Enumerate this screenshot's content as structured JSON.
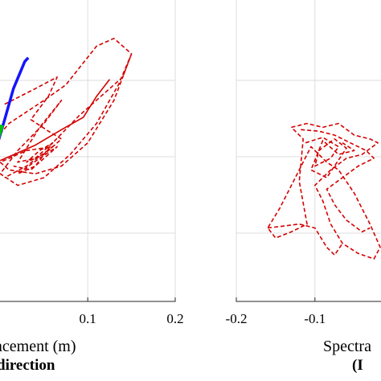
{
  "chart_data": [
    {
      "type": "line",
      "xlabel": "acement (m)",
      "subtitle": "direction",
      "x_ticks": [
        "0.1",
        "0.2"
      ],
      "x_tick_values": [
        0.1,
        0.2
      ],
      "xlim": [
        -0.0095,
        0.2
      ],
      "ylim": [
        0,
        4
      ],
      "grid": true,
      "series": [
        {
          "color": "#d40000",
          "style": "dashed",
          "points": [
            [
              -0.005,
              2.1
            ],
            [
              0.01,
              2.3
            ],
            [
              0.05,
              2.6
            ],
            [
              0.075,
              2.8
            ],
            [
              0.11,
              3.3
            ],
            [
              0.13,
              3.4
            ],
            [
              0.15,
              3.2
            ],
            [
              0.135,
              2.8
            ],
            [
              0.11,
              2.3
            ],
            [
              0.08,
              1.9
            ],
            [
              0.05,
              1.6
            ],
            [
              0.02,
              1.5
            ],
            [
              0.0,
              1.65
            ],
            [
              0.02,
              1.95
            ],
            [
              0.05,
              2.3
            ],
            [
              0.07,
              2.6
            ],
            [
              0.045,
              2.25
            ],
            [
              0.02,
              1.8
            ],
            [
              0.04,
              1.85
            ],
            [
              0.06,
              2.05
            ],
            [
              0.09,
              2.4
            ],
            [
              0.12,
              2.7
            ],
            [
              0.14,
              2.9
            ],
            [
              0.15,
              3.2
            ],
            [
              0.13,
              2.6
            ],
            [
              0.1,
              2.05
            ],
            [
              0.07,
              1.75
            ],
            [
              0.04,
              1.65
            ],
            [
              0.01,
              1.7
            ],
            [
              0.0,
              1.8
            ],
            [
              0.03,
              1.95
            ],
            [
              0.06,
              2.0
            ],
            [
              0.03,
              1.75
            ],
            [
              0.005,
              1.6
            ]
          ]
        },
        {
          "color": "#d40000",
          "style": "dashed",
          "points": [
            [
              0.005,
              2.55
            ],
            [
              0.04,
              2.75
            ],
            [
              0.065,
              2.9
            ],
            [
              0.055,
              2.65
            ],
            [
              0.035,
              2.35
            ],
            [
              0.055,
              2.2
            ],
            [
              0.07,
              2.1
            ],
            [
              0.05,
              1.9
            ],
            [
              0.03,
              1.8
            ],
            [
              0.045,
              1.95
            ],
            [
              0.06,
              2.05
            ],
            [
              0.04,
              1.75
            ],
            [
              0.02,
              1.65
            ],
            [
              0.045,
              1.85
            ],
            [
              0.065,
              2.0
            ],
            [
              0.035,
              1.7
            ],
            [
              0.015,
              1.75
            ]
          ]
        },
        {
          "color": "#d40000",
          "style": "solid",
          "points": [
            [
              0.0,
              1.82
            ],
            [
              0.04,
              2.02
            ],
            [
              0.07,
              2.22
            ],
            [
              0.095,
              2.38
            ],
            [
              0.11,
              2.65
            ],
            [
              0.125,
              2.87
            ]
          ]
        },
        {
          "color": "#1414ff",
          "style": "solid",
          "points": [
            [
              -0.008,
              1.85
            ],
            [
              0.005,
              2.35
            ],
            [
              0.015,
              2.75
            ],
            [
              0.028,
              3.1
            ],
            [
              0.032,
              3.15
            ]
          ]
        },
        {
          "color": "#00c000",
          "style": "solid",
          "points": [
            [
              -0.009,
              1.9
            ],
            [
              -0.003,
              2.1
            ],
            [
              0.002,
              2.28
            ]
          ]
        }
      ]
    },
    {
      "type": "line",
      "xlabel": "Spectra",
      "subtitle": "(I",
      "x_ticks": [
        "-0.2",
        "-0.1"
      ],
      "x_tick_values": [
        -0.2,
        -0.1
      ],
      "xlim": [
        -0.2,
        -0.016
      ],
      "ylim": [
        0,
        4
      ],
      "grid": true,
      "series": [
        {
          "color": "#d40000",
          "style": "dashed",
          "points": [
            [
              -0.13,
              2.25
            ],
            [
              -0.11,
              2.3
            ],
            [
              -0.09,
              2.25
            ],
            [
              -0.07,
              2.3
            ],
            [
              -0.05,
              2.15
            ],
            [
              -0.03,
              2.1
            ],
            [
              -0.02,
              2.05
            ],
            [
              -0.04,
              1.9
            ],
            [
              -0.06,
              1.85
            ],
            [
              -0.08,
              1.7
            ],
            [
              -0.1,
              1.5
            ],
            [
              -0.09,
              1.3
            ],
            [
              -0.08,
              1.0
            ],
            [
              -0.065,
              0.75
            ],
            [
              -0.045,
              0.62
            ],
            [
              -0.025,
              0.55
            ],
            [
              -0.017,
              0.7
            ],
            [
              -0.03,
              1.0
            ],
            [
              -0.05,
              1.4
            ],
            [
              -0.07,
              1.7
            ],
            [
              -0.085,
              1.8
            ],
            [
              -0.105,
              2.0
            ],
            [
              -0.125,
              1.6
            ],
            [
              -0.145,
              1.2
            ],
            [
              -0.16,
              0.95
            ],
            [
              -0.15,
              0.82
            ],
            [
              -0.13,
              0.9
            ],
            [
              -0.11,
              1.0
            ],
            [
              -0.12,
              1.55
            ],
            [
              -0.115,
              2.1
            ],
            [
              -0.13,
              2.25
            ]
          ]
        },
        {
          "color": "#d40000",
          "style": "dashed",
          "points": [
            [
              -0.118,
              2.22
            ],
            [
              -0.095,
              2.2
            ],
            [
              -0.075,
              2.15
            ],
            [
              -0.055,
              2.05
            ],
            [
              -0.035,
              1.95
            ],
            [
              -0.025,
              1.85
            ],
            [
              -0.045,
              1.75
            ],
            [
              -0.065,
              1.6
            ],
            [
              -0.085,
              1.45
            ],
            [
              -0.075,
              1.25
            ],
            [
              -0.06,
              1.05
            ],
            [
              -0.04,
              0.9
            ],
            [
              -0.03,
              0.95
            ]
          ]
        },
        {
          "color": "#d40000",
          "style": "dashed",
          "points": [
            [
              -0.112,
              2.05
            ],
            [
              -0.09,
              2.12
            ],
            [
              -0.07,
              2.0
            ],
            [
              -0.08,
              1.85
            ],
            [
              -0.1,
              1.75
            ],
            [
              -0.095,
              1.95
            ],
            [
              -0.075,
              2.1
            ],
            [
              -0.06,
              1.98
            ],
            [
              -0.085,
              1.6
            ],
            [
              -0.105,
              1.7
            ],
            [
              -0.09,
              2.08
            ],
            [
              -0.07,
              1.9
            ],
            [
              -0.05,
              1.95
            ],
            [
              -0.065,
              2.05
            ]
          ]
        },
        {
          "color": "#d40000",
          "style": "dashed",
          "points": [
            [
              -0.16,
              0.95
            ],
            [
              -0.12,
              1.0
            ],
            [
              -0.1,
              0.95
            ],
            [
              -0.085,
              0.7
            ],
            [
              -0.075,
              0.6
            ],
            [
              -0.065,
              0.75
            ]
          ]
        }
      ]
    }
  ]
}
